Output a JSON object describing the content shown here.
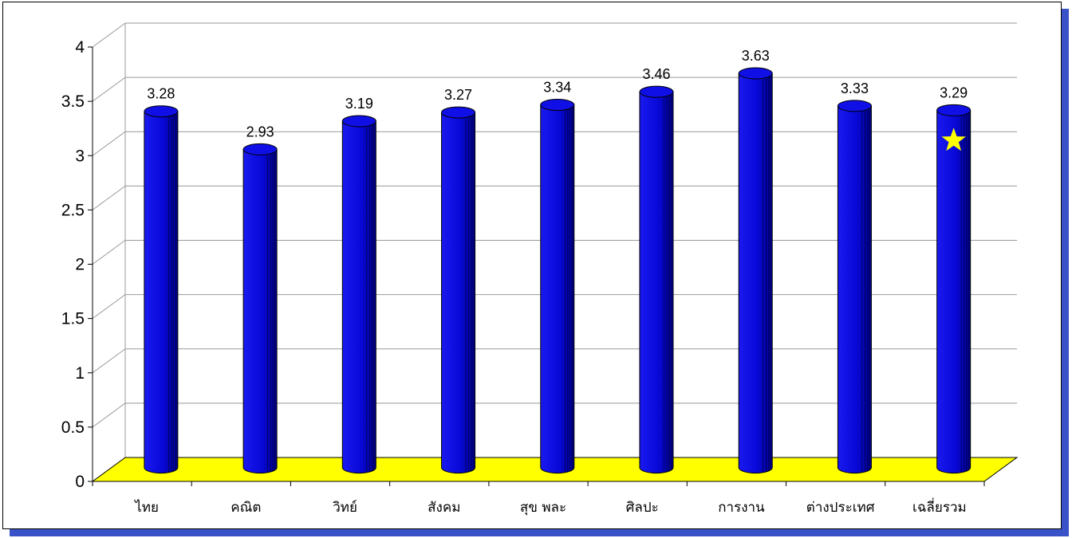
{
  "chart_data": {
    "type": "bar",
    "style": "3d-cylinder",
    "categories": [
      "ไทย",
      "คณิต",
      "วิทย์",
      "สังคม",
      "สุข พละ",
      "ศิลปะ",
      "การงาน",
      "ต่างประเทศ",
      "เฉลี่ยรวม"
    ],
    "values": [
      3.28,
      2.93,
      3.19,
      3.27,
      3.34,
      3.46,
      3.63,
      3.33,
      3.29
    ],
    "value_labels": [
      "3.28",
      "2.93",
      "3.19",
      "3.27",
      "3.34",
      "3.46",
      "3.63",
      "3.33",
      "3.29"
    ],
    "ylim": [
      0,
      4
    ],
    "yticks": [
      "0",
      "0.5",
      "1",
      "1.5",
      "2",
      "2.5",
      "3",
      "3.5",
      "4"
    ],
    "grid": true,
    "legend": "none",
    "highlight": {
      "category_index": 8,
      "marker": "star-icon"
    },
    "colors": {
      "bar": "#0a0ad8",
      "floor": "#ffff00",
      "grid": "#999999",
      "star": "#ffff00",
      "frame_shadow": "#3a52c8"
    }
  }
}
